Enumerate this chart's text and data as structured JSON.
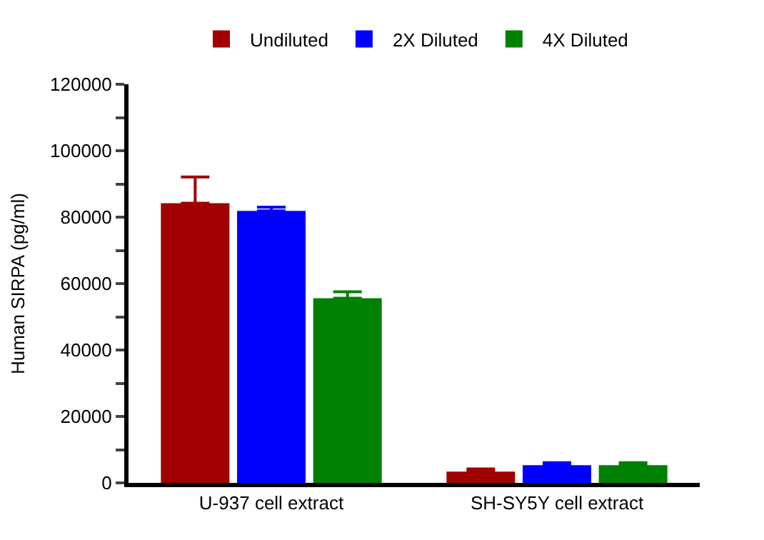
{
  "chart_data": {
    "type": "bar",
    "ylabel": "Human SIRPA (pg/ml)",
    "categories": [
      "U-937 cell extract",
      "SH-SY5Y cell extract"
    ],
    "series": [
      {
        "name": "Undiluted",
        "color": "#a00000",
        "values": [
          84200,
          3400
        ],
        "errors": [
          [
            84200,
            92100
          ],
          [
            3400,
            4200
          ]
        ]
      },
      {
        "name": "2X Diluted",
        "color": "#0000ff",
        "values": [
          81900,
          5300
        ],
        "errors": [
          [
            81900,
            83000
          ],
          [
            5300,
            6100
          ]
        ]
      },
      {
        "name": "4X Diluted",
        "color": "#008000",
        "values": [
          55600,
          5300
        ],
        "errors": [
          [
            55600,
            57500
          ],
          [
            5300,
            6100
          ]
        ]
      }
    ],
    "ylim": [
      0,
      120000
    ],
    "yticks": [
      0,
      {
        "value": 10000,
        "label": null
      },
      20000,
      {
        "value": 30000,
        "label": null
      },
      40000,
      {
        "value": 50000,
        "label": null
      },
      60000,
      {
        "value": 70000,
        "label": null
      },
      80000,
      {
        "value": 90000,
        "label": null
      },
      100000,
      {
        "value": 110000,
        "label": null
      },
      120000
    ],
    "legend": "top"
  }
}
